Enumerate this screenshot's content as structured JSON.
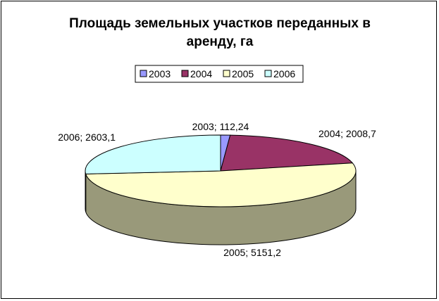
{
  "chart_data": {
    "type": "pie",
    "variant": "3d",
    "title_lines": [
      "Площадь земельных участков переданных в",
      "аренду, га"
    ],
    "categories": [
      "2003",
      "2004",
      "2005",
      "2006"
    ],
    "values": [
      112.24,
      2008.7,
      5151.2,
      2603.1
    ],
    "data_labels": [
      "2003; 112,24",
      "2004; 2008,7",
      "2005; 5151,2",
      "2006; 2603,1"
    ],
    "colors": [
      "#9999FF",
      "#993366",
      "#FFFFCC",
      "#CCFFFF"
    ],
    "side_colors": [
      "#5C5C99",
      "#5C1F3D",
      "#99997A",
      "#7A9999"
    ],
    "legend_position": "top"
  }
}
